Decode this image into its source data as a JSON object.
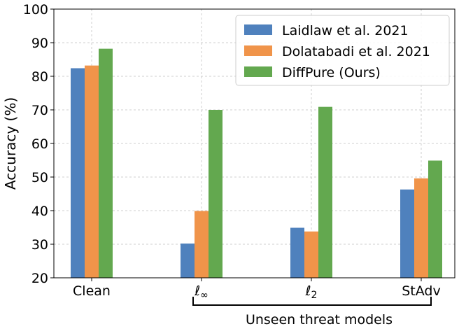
{
  "chart_data": {
    "type": "bar",
    "title": "",
    "xlabel": "",
    "ylabel": "Accuracy (%)",
    "ylim": [
      20,
      100
    ],
    "yticks": [
      20,
      30,
      40,
      50,
      60,
      70,
      80,
      90,
      100
    ],
    "grid": true,
    "legend_position": "top-right",
    "categories": [
      "Clean",
      "ℓ∞",
      "ℓ2",
      "StAdv"
    ],
    "series": [
      {
        "name": "Laidlaw et al. 2021",
        "color": "#4f81bd",
        "values": [
          82.4,
          30.2,
          34.9,
          46.3
        ]
      },
      {
        "name": "Dolatabadi et al. 2021",
        "color": "#f0944a",
        "values": [
          83.2,
          39.9,
          33.8,
          49.6
        ]
      },
      {
        "name": "DiffPure (Ours)",
        "color": "#63a84f",
        "values": [
          88.2,
          70.0,
          70.9,
          54.9
        ]
      }
    ],
    "annotation": {
      "text": "Unseen threat models",
      "spans_categories": [
        "ℓ∞",
        "StAdv"
      ]
    }
  }
}
